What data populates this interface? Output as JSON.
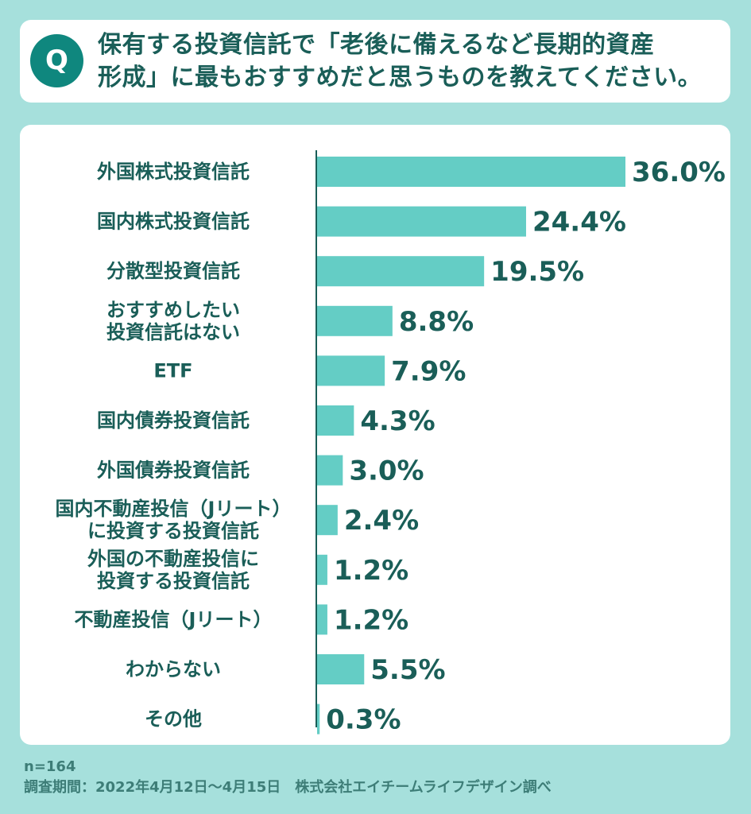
{
  "question": {
    "badge": "Q",
    "line1": "保有する投資信託で「老後に備えるなど長期的資産",
    "line2": "形成」に最もおすすめだと思うものを教えてください。"
  },
  "chart_data": {
    "type": "bar",
    "orientation": "horizontal",
    "categories": [
      [
        "外国株式投資信託"
      ],
      [
        "国内株式投資信託"
      ],
      [
        "分散型投資信託"
      ],
      [
        "おすすめしたい",
        "投資信託はない"
      ],
      [
        "ETF"
      ],
      [
        "国内債券投資信託"
      ],
      [
        "外国債券投資信託"
      ],
      [
        "国内不動産投信（Jリート）",
        "に投資する投資信託"
      ],
      [
        "外国の不動産投信に",
        "投資する投資信託"
      ],
      [
        "不動産投信（Jリート）"
      ],
      [
        "わからない"
      ],
      [
        "その他"
      ]
    ],
    "values": [
      36.0,
      24.4,
      19.5,
      8.8,
      7.9,
      4.3,
      3.0,
      2.4,
      1.2,
      1.2,
      5.5,
      0.3
    ],
    "value_labels": [
      "36.0%",
      "24.4%",
      "19.5%",
      "8.8%",
      "7.9%",
      "4.3%",
      "3.0%",
      "2.4%",
      "1.2%",
      "1.2%",
      "5.5%",
      "0.3%"
    ],
    "xlim": [
      0,
      36.0
    ],
    "bar_color": "#64cdc5",
    "text_color": "#1a5e58",
    "grid": false
  },
  "footer": {
    "sample": "n=164",
    "survey": "調査期間：2022年4月12日〜4月15日　株式会社エイチームライフデザイン調べ"
  },
  "colors": {
    "background": "#a6e0dc",
    "accent": "#0f877e",
    "panel": "#ffffff"
  }
}
